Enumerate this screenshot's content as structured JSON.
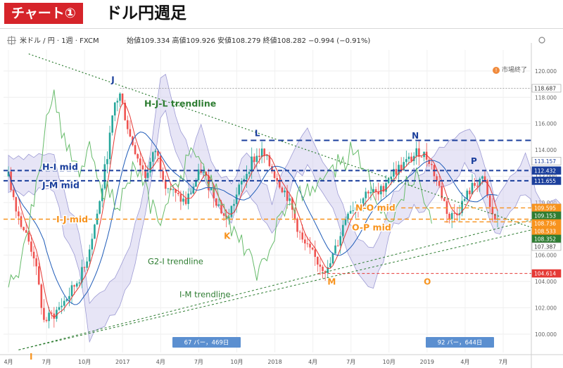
{
  "heading": {
    "badge": "チャート①",
    "title": "ドル円週足"
  },
  "chart_header": {
    "symbol": "米ドル / 円 · 1週 · FXCM",
    "ohlc": "始値109.334 高値109.926 安値108.279 終値108.282 −0.994 (−0.91%)",
    "market_status": "市場終了"
  },
  "colors": {
    "up": "#26a69a",
    "down": "#ef5350",
    "accent": "#d6242a"
  },
  "chart_data": {
    "type": "candlestick",
    "x_ticks": [
      "4月",
      "7月",
      "10月",
      "2017",
      "4月",
      "7月",
      "10月",
      "2018",
      "4月",
      "7月",
      "10月",
      "2019",
      "4月",
      "7月"
    ],
    "y_ticks": [
      "120.000",
      "118.000",
      "116.000",
      "114.000",
      "112.000",
      "110.000",
      "108.000",
      "106.000",
      "104.000",
      "102.000",
      "100.000"
    ],
    "ylim": [
      98.6,
      121.6
    ],
    "price_tags": [
      {
        "value": "118.687",
        "color": "#ffffff",
        "text_color": "#333333"
      },
      {
        "value": "113.157",
        "color": "#ffffff",
        "text_color": "#1b3f9c"
      },
      {
        "value": "112.432",
        "color": "#1b3f9c",
        "text_color": "#ffffff"
      },
      {
        "value": "111.655",
        "color": "#1b3f9c",
        "text_color": "#ffffff"
      },
      {
        "value": "109.595",
        "color": "#f7931e",
        "text_color": "#ffffff"
      },
      {
        "value": "109.153",
        "color": "#2e7d32",
        "text_color": "#ffffff"
      },
      {
        "value": "108.736",
        "color": "#f7931e",
        "text_color": "#ffffff"
      },
      {
        "value": "108.533",
        "color": "#f7931e",
        "text_color": "#ffffff"
      },
      {
        "value": "108.352",
        "color": "#2e7d32",
        "text_color": "#ffffff"
      },
      {
        "value": "107.387",
        "color": "#ffffff",
        "text_color": "#333333"
      },
      {
        "value": "104.614",
        "color": "#e53935",
        "text_color": "#ffffff"
      }
    ],
    "level_labels": [
      {
        "text": "H-I mid",
        "color": "#1b3f9c"
      },
      {
        "text": "J-M mid",
        "color": "#1b3f9c"
      },
      {
        "text": "I-J mid",
        "color": "#f7931e"
      },
      {
        "text": "N-O mid",
        "color": "#f7931e"
      },
      {
        "text": "O-P mid",
        "color": "#f7931e"
      }
    ],
    "trendline_labels": [
      {
        "text": "H-J-L trendline",
        "color": "#2e7d32"
      },
      {
        "text": "G2-I trendline",
        "color": "#2e7d32"
      },
      {
        "text": "I-M trendline",
        "color": "#2e7d32"
      }
    ],
    "points": [
      {
        "name": "J",
        "price": 118.687,
        "color": "#1b3f9c"
      },
      {
        "name": "L",
        "price": 114.73,
        "color": "#1b3f9c"
      },
      {
        "name": "N",
        "price": 114.55,
        "color": "#1b3f9c"
      },
      {
        "name": "P",
        "price": 112.4,
        "color": "#1b3f9c"
      },
      {
        "name": "K",
        "price": 108.1,
        "color": "#f7931e"
      },
      {
        "name": "M",
        "price": 104.614,
        "color": "#f7931e"
      },
      {
        "name": "O",
        "price": 104.614,
        "color": "#f7931e"
      },
      {
        "name": "I",
        "price": 99.02,
        "color": "#f7931e"
      }
    ],
    "range_labels": [
      "67 バー，469日",
      "92 バー，644日"
    ]
  }
}
